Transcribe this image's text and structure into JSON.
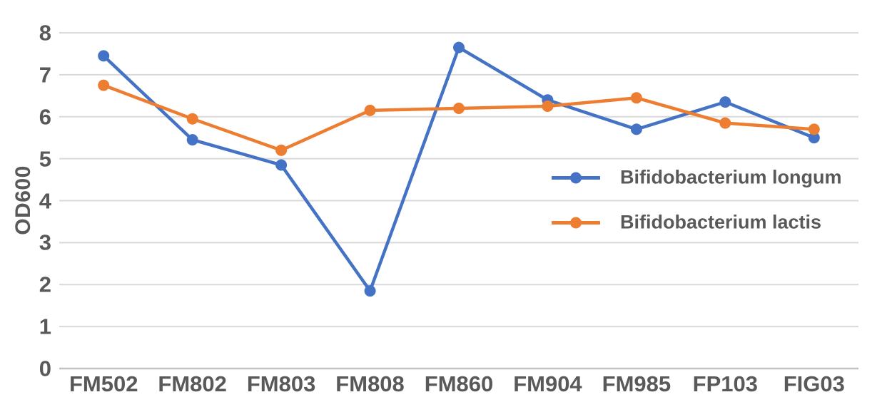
{
  "chart_data": {
    "type": "line",
    "title": "",
    "xlabel": "",
    "ylabel": "OD600",
    "ylim": [
      0,
      8
    ],
    "yticks": [
      0,
      1,
      2,
      3,
      4,
      5,
      6,
      7,
      8
    ],
    "grid": true,
    "legend_position": "inside-right",
    "categories": [
      "FM502",
      "FM802",
      "FM803",
      "FM808",
      "FM860",
      "FM904",
      "FM985",
      "FP103",
      "FIG03"
    ],
    "series": [
      {
        "name": "Bifidobacterium longum",
        "color": "#4472C4",
        "values": [
          7.45,
          5.45,
          4.85,
          1.85,
          7.65,
          6.4,
          5.7,
          6.35,
          5.5
        ]
      },
      {
        "name": "Bifidobacterium lactis",
        "color": "#ED7D31",
        "values": [
          6.75,
          5.95,
          5.2,
          6.15,
          6.2,
          6.25,
          6.45,
          5.85,
          5.7
        ]
      }
    ]
  },
  "colors": {
    "text": "#595959",
    "gridline": "#D9D9D9",
    "axis_line": "#C3C3C3",
    "background": "#FFFFFF"
  }
}
